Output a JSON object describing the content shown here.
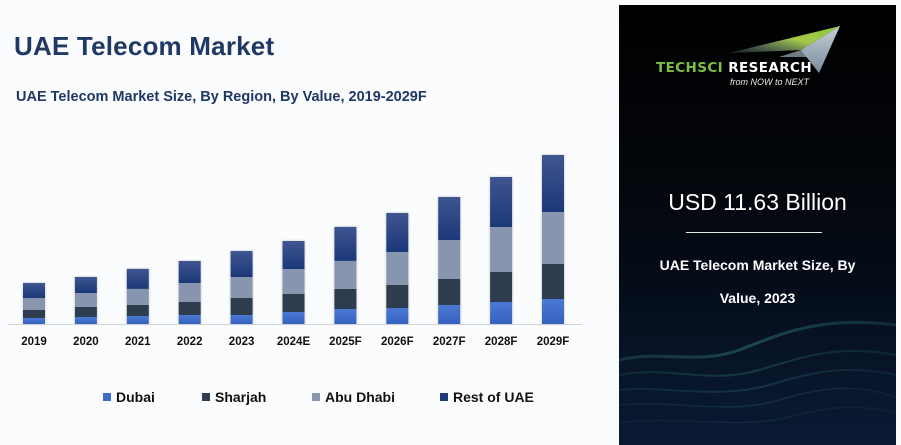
{
  "header": {
    "title": "UAE Telecom Market",
    "subtitle": "UAE Telecom Market Size, By Region, By Value, 2019-2029F"
  },
  "chart_data": {
    "type": "bar",
    "stacked": true,
    "title": "UAE Telecom Market Size, By Region, By Value, 2019-2029F",
    "xlabel": "",
    "ylabel": "",
    "units": "USD Billion (estimated; no y-axis shown, scaled to 2023 total = 11.63)",
    "categories": [
      "2019",
      "2020",
      "2021",
      "2022",
      "2023",
      "2024E",
      "2025F",
      "2026F",
      "2027F",
      "2028F",
      "2029F"
    ],
    "series": [
      {
        "name": "Dubai",
        "color": "#3e6ac8",
        "values": [
          0.96,
          1.12,
          1.28,
          1.43,
          1.43,
          1.91,
          2.39,
          2.55,
          3.03,
          3.5,
          3.98
        ]
      },
      {
        "name": "Sharjah",
        "color": "#2f3d4e",
        "values": [
          1.27,
          1.59,
          1.75,
          2.07,
          2.71,
          2.87,
          3.19,
          3.66,
          4.14,
          4.78,
          5.58
        ]
      },
      {
        "name": "Abu Dhabi",
        "color": "#8796ae",
        "values": [
          1.91,
          2.23,
          2.55,
          3.03,
          3.35,
          3.98,
          4.46,
          5.26,
          6.21,
          7.17,
          8.28
        ]
      },
      {
        "name": "Rest of UAE",
        "color": "#1f3a7a",
        "values": [
          2.39,
          2.55,
          3.19,
          3.5,
          4.14,
          4.46,
          5.42,
          6.21,
          6.85,
          7.97,
          9.08
        ]
      }
    ],
    "ylim": [
      0,
      28
    ],
    "grid": false,
    "legend_position": "bottom"
  },
  "legend": [
    {
      "label": "Dubai",
      "color": "#3e6ac8"
    },
    {
      "label": "Sharjah",
      "color": "#2f3d4e"
    },
    {
      "label": "Abu Dhabi",
      "color": "#8796ae"
    },
    {
      "label": "Rest of UAE",
      "color": "#1f3a7a"
    }
  ],
  "side_panel": {
    "logo": {
      "brand_part1": "TECHSCI",
      "brand_part2": "RESEARCH",
      "tagline": "from NOW to NEXT",
      "brand_green": "#7cc142"
    },
    "highlight_value": "USD 11.63 Billion",
    "caption_line1": "UAE Telecom Market Size, By",
    "caption_line2": "Value, 2023"
  }
}
